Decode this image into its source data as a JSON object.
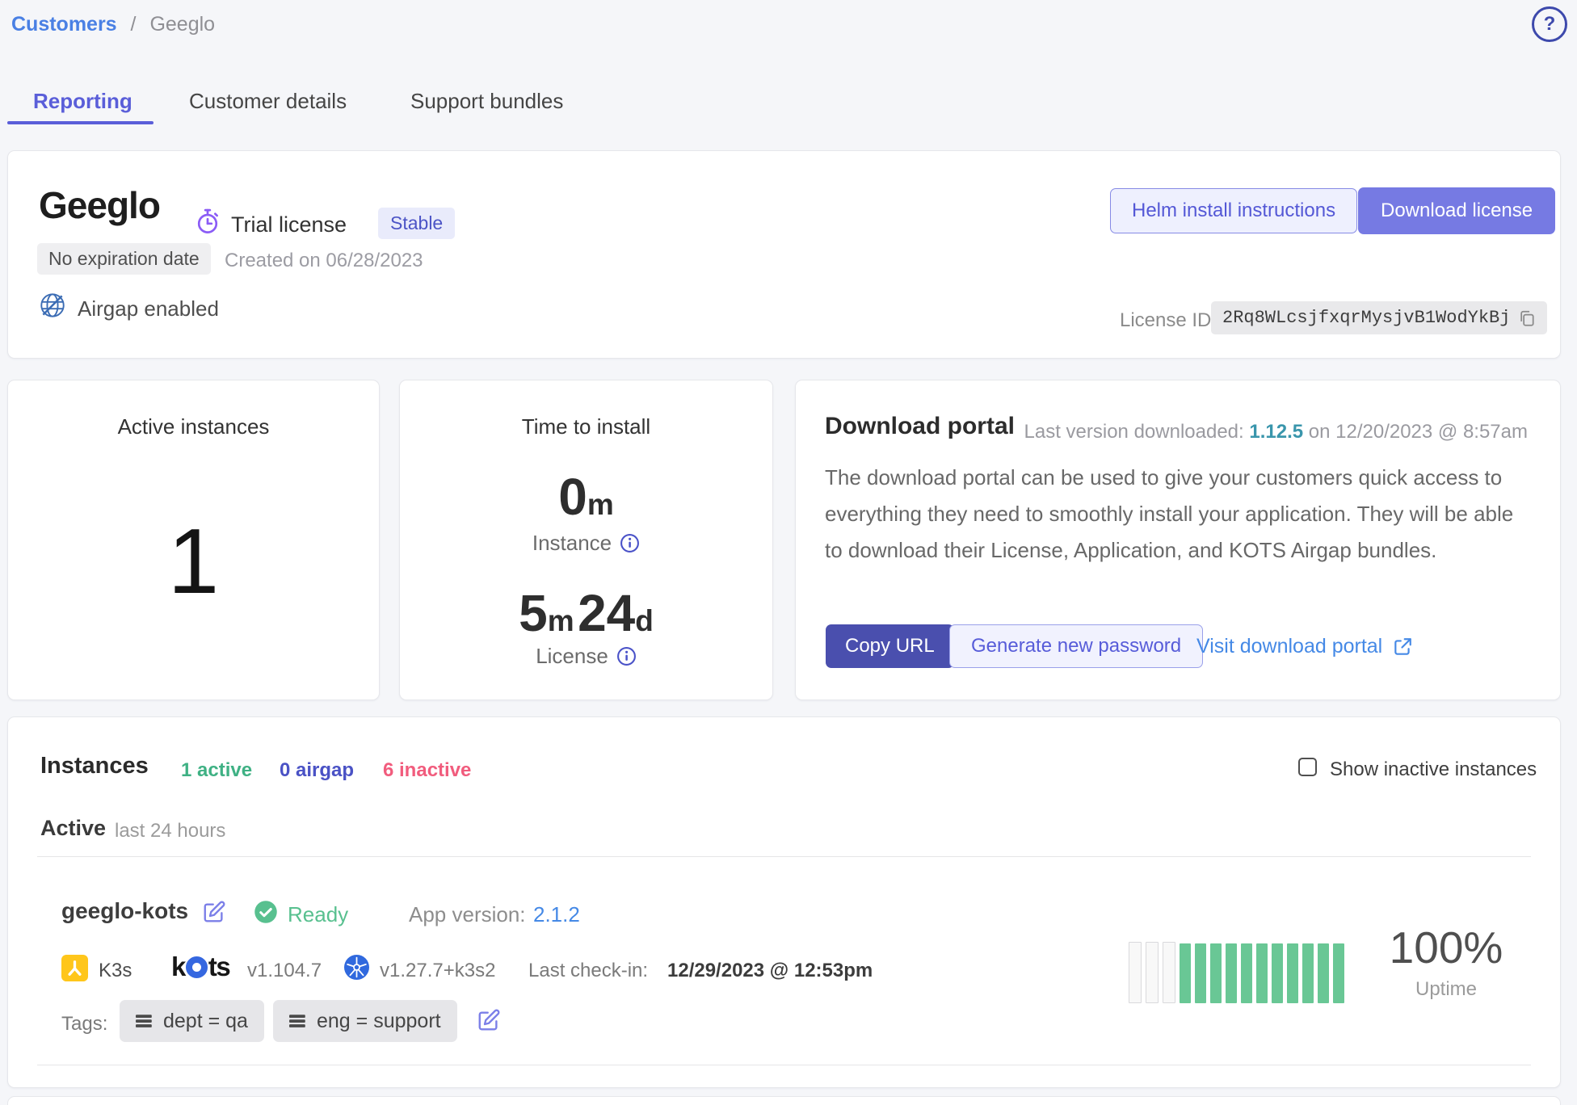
{
  "breadcrumb": {
    "parent": "Customers",
    "separator": "/",
    "current": "Geeglo"
  },
  "header": {
    "help_icon": "?"
  },
  "tabs": {
    "reporting": "Reporting",
    "customer_details": "Customer details",
    "support_bundles": "Support bundles",
    "active_tab": "Reporting"
  },
  "license": {
    "customer_name": "Geeglo",
    "license_type": "Trial license",
    "channel_badge": "Stable",
    "expiration_badge": "No expiration date",
    "created_text": "Created on 06/28/2023",
    "airgap_text": "Airgap enabled",
    "helm_button": "Helm install instructions",
    "download_button": "Download license",
    "license_id_label": "License ID:",
    "license_id_value": "2Rq8WLcsjfxqrMysjvB1WodYkBj"
  },
  "summary_cards": {
    "active_instances": {
      "title": "Active instances",
      "value": "1"
    },
    "time_to_install": {
      "title": "Time to install",
      "instance_value": "0",
      "instance_unit": "m",
      "instance_label": "Instance",
      "license_value_1": "5",
      "license_unit_1": "m",
      "license_value_2": "24",
      "license_unit_2": "d",
      "license_label": "License"
    },
    "download_portal": {
      "title": "Download portal",
      "last_version_label": "Last version downloaded:",
      "last_version": "1.12.5",
      "last_version_date": "on 12/20/2023 @ 8:57am",
      "description": "The download portal can be used to give your customers quick access to everything they need to smoothly install your application. They will be able to download their License, Application, and KOTS Airgap bundles.",
      "copy_url_button": "Copy URL",
      "generate_password_button": "Generate new password",
      "visit_portal_link": "Visit download portal"
    }
  },
  "instances": {
    "title": "Instances",
    "active_count": "1 active",
    "airgap_count": "0 airgap",
    "inactive_count": "6 inactive",
    "show_inactive_label": "Show inactive instances",
    "group_header": "Active",
    "group_subheader": "last 24 hours",
    "instance": {
      "name": "geeglo-kots",
      "status": "Ready",
      "app_version_label": "App version:",
      "app_version": "2.1.2",
      "distribution": "K3s",
      "kots_text_before_o": "k",
      "kots_text_after_o": "ts",
      "kots_version": "v1.104.7",
      "k8s_version": "v1.27.7+k3s2",
      "last_checkin_label": "Last check-in:",
      "last_checkin_value": "12/29/2023 @ 12:53pm",
      "tags_label": "Tags:",
      "tags": [
        "dept = qa",
        "eng = support"
      ],
      "uptime_value": "100%",
      "uptime_label": "Uptime",
      "uptime_bars": {
        "empty": 3,
        "filled": 11
      }
    }
  },
  "colors": {
    "accent_indigo": "#5a5ed9",
    "button_indigo_dark": "#4a4fae",
    "button_periwinkle": "#767ae3",
    "link_blue": "#4589e6",
    "link_teal": "#3a96ac",
    "status_green": "#58c08f",
    "inactive_pink": "#f15c7d",
    "trial_purple": "#8b5cf6",
    "k3s_yellow": "#ffc61b",
    "k8s_blue": "#3069de",
    "uptime_bar_green": "#69c795",
    "page_background": "#f5f6f9"
  }
}
